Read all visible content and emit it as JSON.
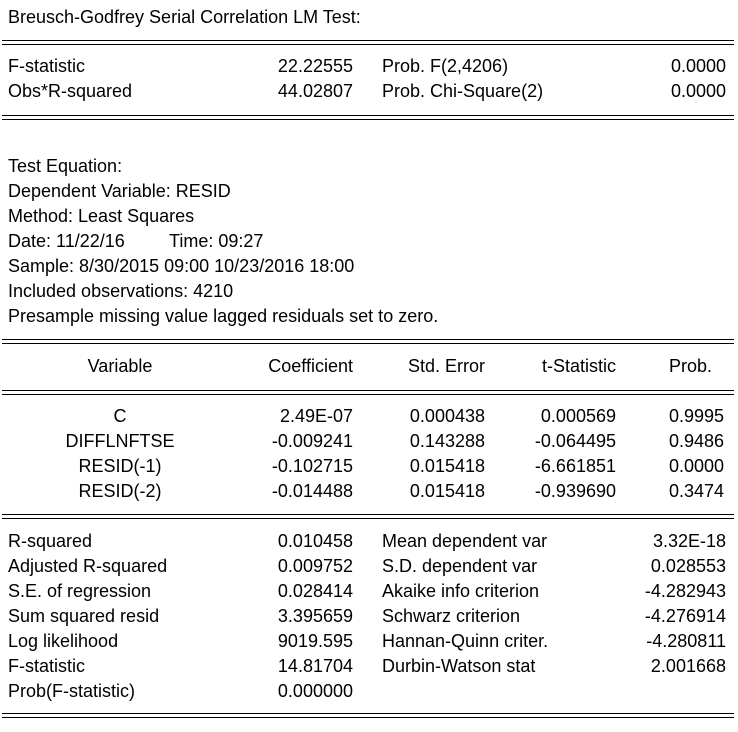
{
  "title": "Breusch-Godfrey Serial Correlation LM Test:",
  "test_stats": [
    {
      "label": "F-statistic",
      "value": "22.22555",
      "prob_label": "Prob. F(2,4206)",
      "prob_value": "0.0000"
    },
    {
      "label": "Obs*R-squared",
      "value": "44.02807",
      "prob_label": "Prob. Chi-Square(2)",
      "prob_value": "0.0000"
    }
  ],
  "test_equation": {
    "heading": "Test Equation:",
    "dependent": "Dependent Variable: RESID",
    "method": "Method: Least Squares",
    "date_label": "Date: 11/22/16",
    "time_label": "Time: 09:27",
    "sample": "Sample: 8/30/2015 09:00 10/23/2016 18:00",
    "observations": "Included observations: 4210",
    "note": "Presample missing value lagged residuals set to zero."
  },
  "table": {
    "headers": [
      "Variable",
      "Coefficient",
      "Std. Error",
      "t-Statistic",
      "Prob."
    ],
    "rows": [
      [
        "C",
        "2.49E-07",
        "0.000438",
        "0.000569",
        "0.9995"
      ],
      [
        "DIFFLNFTSE",
        "-0.009241",
        "0.143288",
        "-0.064495",
        "0.9486"
      ],
      [
        "RESID(-1)",
        "-0.102715",
        "0.015418",
        "-6.661851",
        "0.0000"
      ],
      [
        "RESID(-2)",
        "-0.014488",
        "0.015418",
        "-0.939690",
        "0.3474"
      ]
    ]
  },
  "summary": [
    {
      "l1": "R-squared",
      "v1": "0.010458",
      "l2": "Mean dependent var",
      "v2": "3.32E-18"
    },
    {
      "l1": "Adjusted R-squared",
      "v1": "0.009752",
      "l2": "S.D. dependent var",
      "v2": "0.028553"
    },
    {
      "l1": "S.E. of regression",
      "v1": "0.028414",
      "l2": "Akaike info criterion",
      "v2": "-4.282943"
    },
    {
      "l1": "Sum squared resid",
      "v1": "3.395659",
      "l2": "Schwarz criterion",
      "v2": "-4.276914"
    },
    {
      "l1": "Log likelihood",
      "v1": "9019.595",
      "l2": "Hannan-Quinn criter.",
      "v2": "-4.280811"
    },
    {
      "l1": "F-statistic",
      "v1": "14.81704",
      "l2": "Durbin-Watson stat",
      "v2": "2.001668"
    },
    {
      "l1": "Prob(F-statistic)",
      "v1": "0.000000",
      "l2": "",
      "v2": ""
    }
  ]
}
